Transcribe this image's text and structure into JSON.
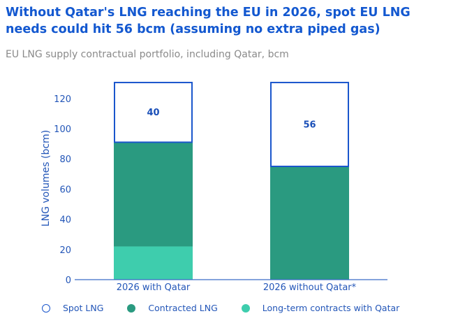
{
  "title": "Without Qatar's LNG reaching the EU in 2026, spot EU LNG needs could hit 56 bcm (assuming no extra piped gas)",
  "subtitle": "EU LNG supply contractual portfolio, including Qatar, bcm",
  "chart_data": {
    "type": "bar",
    "stacked": true,
    "categories": [
      "2026 with Qatar",
      "2026 without Qatar*"
    ],
    "series": [
      {
        "name": "Long-term contracts with Qatar",
        "values": [
          22,
          0
        ],
        "color": "#3ecdad"
      },
      {
        "name": "Contracted LNG",
        "values": [
          69,
          75
        ],
        "color": "#2a9a80"
      },
      {
        "name": "Spot LNG",
        "values": [
          40,
          56
        ],
        "color": "#ffffff",
        "stroke": "#1a56cc"
      }
    ],
    "data_labels": [
      "40",
      "56"
    ],
    "ylabel": "LNG volumes (bcm)",
    "ylim": [
      0,
      131
    ],
    "yticks": [
      0,
      20,
      40,
      60,
      80,
      100,
      120
    ],
    "legend": "bottom",
    "grid": false
  }
}
